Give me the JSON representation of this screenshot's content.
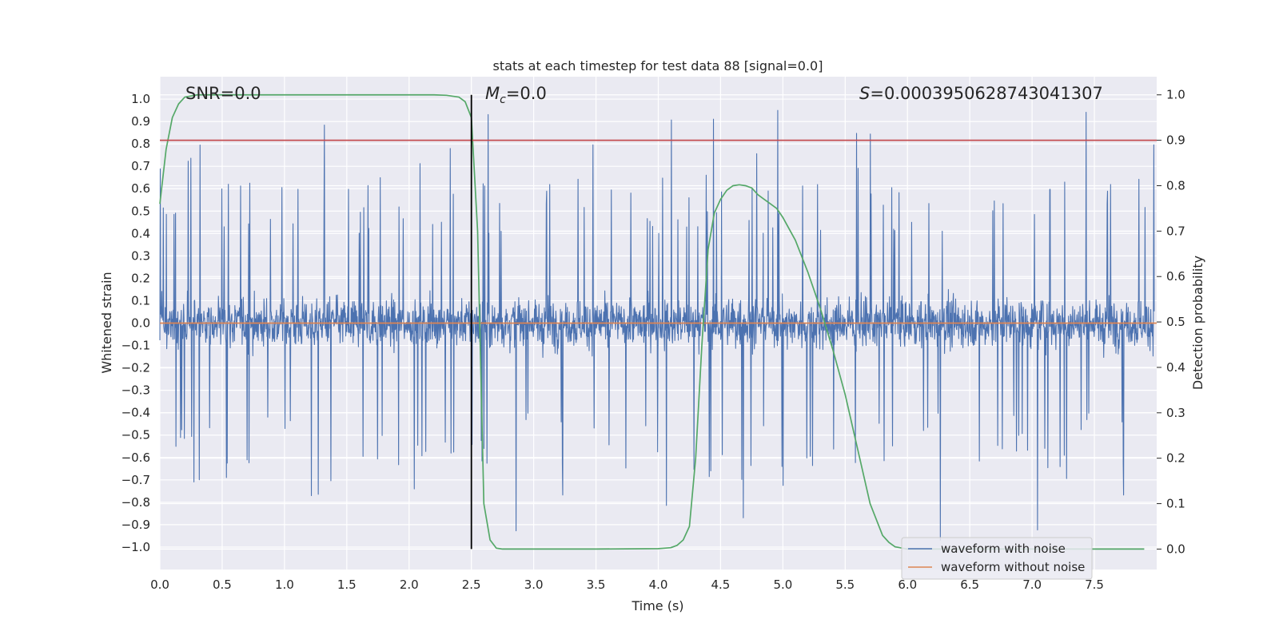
{
  "chart_data": {
    "type": "line",
    "title": "stats at each timestep for test data 88 [signal=0.0]",
    "xlabel": "Time (s)",
    "ylabel": "Whitened strain",
    "y2label": "Detection probability",
    "xlim": [
      0.0,
      8.0
    ],
    "ylim": [
      -1.1,
      1.1
    ],
    "y2lim": [
      -0.045,
      1.04
    ],
    "xticks": [
      "0.0",
      "0.5",
      "1.0",
      "1.5",
      "2.0",
      "2.5",
      "3.0",
      "3.5",
      "4.0",
      "4.5",
      "5.0",
      "5.5",
      "6.0",
      "6.5",
      "7.0",
      "7.5"
    ],
    "yticks": [
      "1.0",
      "0.9",
      "0.8",
      "0.7",
      "0.6",
      "0.5",
      "0.4",
      "0.3",
      "0.2",
      "0.1",
      "0.0",
      "−0.1",
      "−0.2",
      "−0.3",
      "−0.4",
      "−0.5",
      "−0.6",
      "−0.7",
      "−0.8",
      "−0.9",
      "−1.0"
    ],
    "y2ticks": [
      "1.0",
      "0.9",
      "0.8",
      "0.7",
      "0.6",
      "0.5",
      "0.4",
      "0.3",
      "0.2",
      "0.1",
      "0.0"
    ],
    "grid": true,
    "legend_position": "lower-right",
    "annotations": {
      "snr": "SNR=0.0",
      "mc_symbol": "M",
      "mc_sub": "c",
      "mc_value": "=0.0",
      "s_symbol": "S",
      "s_value": "=0.0003950628743041307"
    },
    "series": [
      {
        "name": "waveform with noise",
        "color": "#4c72b0",
        "axis": "left",
        "description": "dense noise trace, roughly symmetric, typical envelope about ±0.4 with spikes up to about ±0.97"
      },
      {
        "name": "waveform without noise",
        "color": "#dd8452",
        "axis": "left",
        "x": [
          0.0,
          8.0
        ],
        "y": [
          0.0,
          0.0
        ]
      },
      {
        "axis": "right",
        "color": "#55a868",
        "x": [
          0.0,
          0.05,
          0.1,
          0.15,
          0.2,
          0.3,
          0.4,
          0.5,
          1.0,
          2.0,
          2.2,
          2.3,
          2.4,
          2.45,
          2.5,
          2.55,
          2.6,
          2.65,
          2.7,
          2.75,
          2.8,
          3.0,
          3.5,
          4.0,
          4.1,
          4.15,
          4.2,
          4.25,
          4.3,
          4.35,
          4.4,
          4.45,
          4.5,
          4.55,
          4.6,
          4.65,
          4.7,
          4.75,
          4.8,
          4.85,
          4.9,
          4.95,
          5.0,
          5.1,
          5.2,
          5.3,
          5.4,
          5.5,
          5.6,
          5.7,
          5.8,
          5.85,
          5.9,
          6.0,
          6.5,
          7.0,
          7.5,
          7.9
        ],
        "y": [
          0.76,
          0.88,
          0.95,
          0.98,
          0.995,
          1.0,
          1.0,
          1.0,
          1.0,
          1.0,
          1.0,
          0.999,
          0.995,
          0.985,
          0.95,
          0.7,
          0.1,
          0.02,
          0.002,
          0.0,
          0.0,
          0.0,
          0.0,
          0.001,
          0.003,
          0.008,
          0.02,
          0.05,
          0.2,
          0.45,
          0.66,
          0.74,
          0.77,
          0.79,
          0.8,
          0.802,
          0.8,
          0.795,
          0.78,
          0.77,
          0.76,
          0.75,
          0.73,
          0.68,
          0.61,
          0.53,
          0.44,
          0.34,
          0.22,
          0.1,
          0.03,
          0.015,
          0.005,
          0.0,
          0.0,
          0.0,
          0.0,
          0.0
        ]
      },
      {
        "axis": "right",
        "color": "#c44e52",
        "x": [
          0.0,
          8.0
        ],
        "y": [
          0.9,
          0.9
        ]
      },
      {
        "axis": "right",
        "color": "#000000",
        "x": [
          2.5,
          2.5
        ],
        "y": [
          0.0,
          1.0
        ]
      }
    ]
  }
}
